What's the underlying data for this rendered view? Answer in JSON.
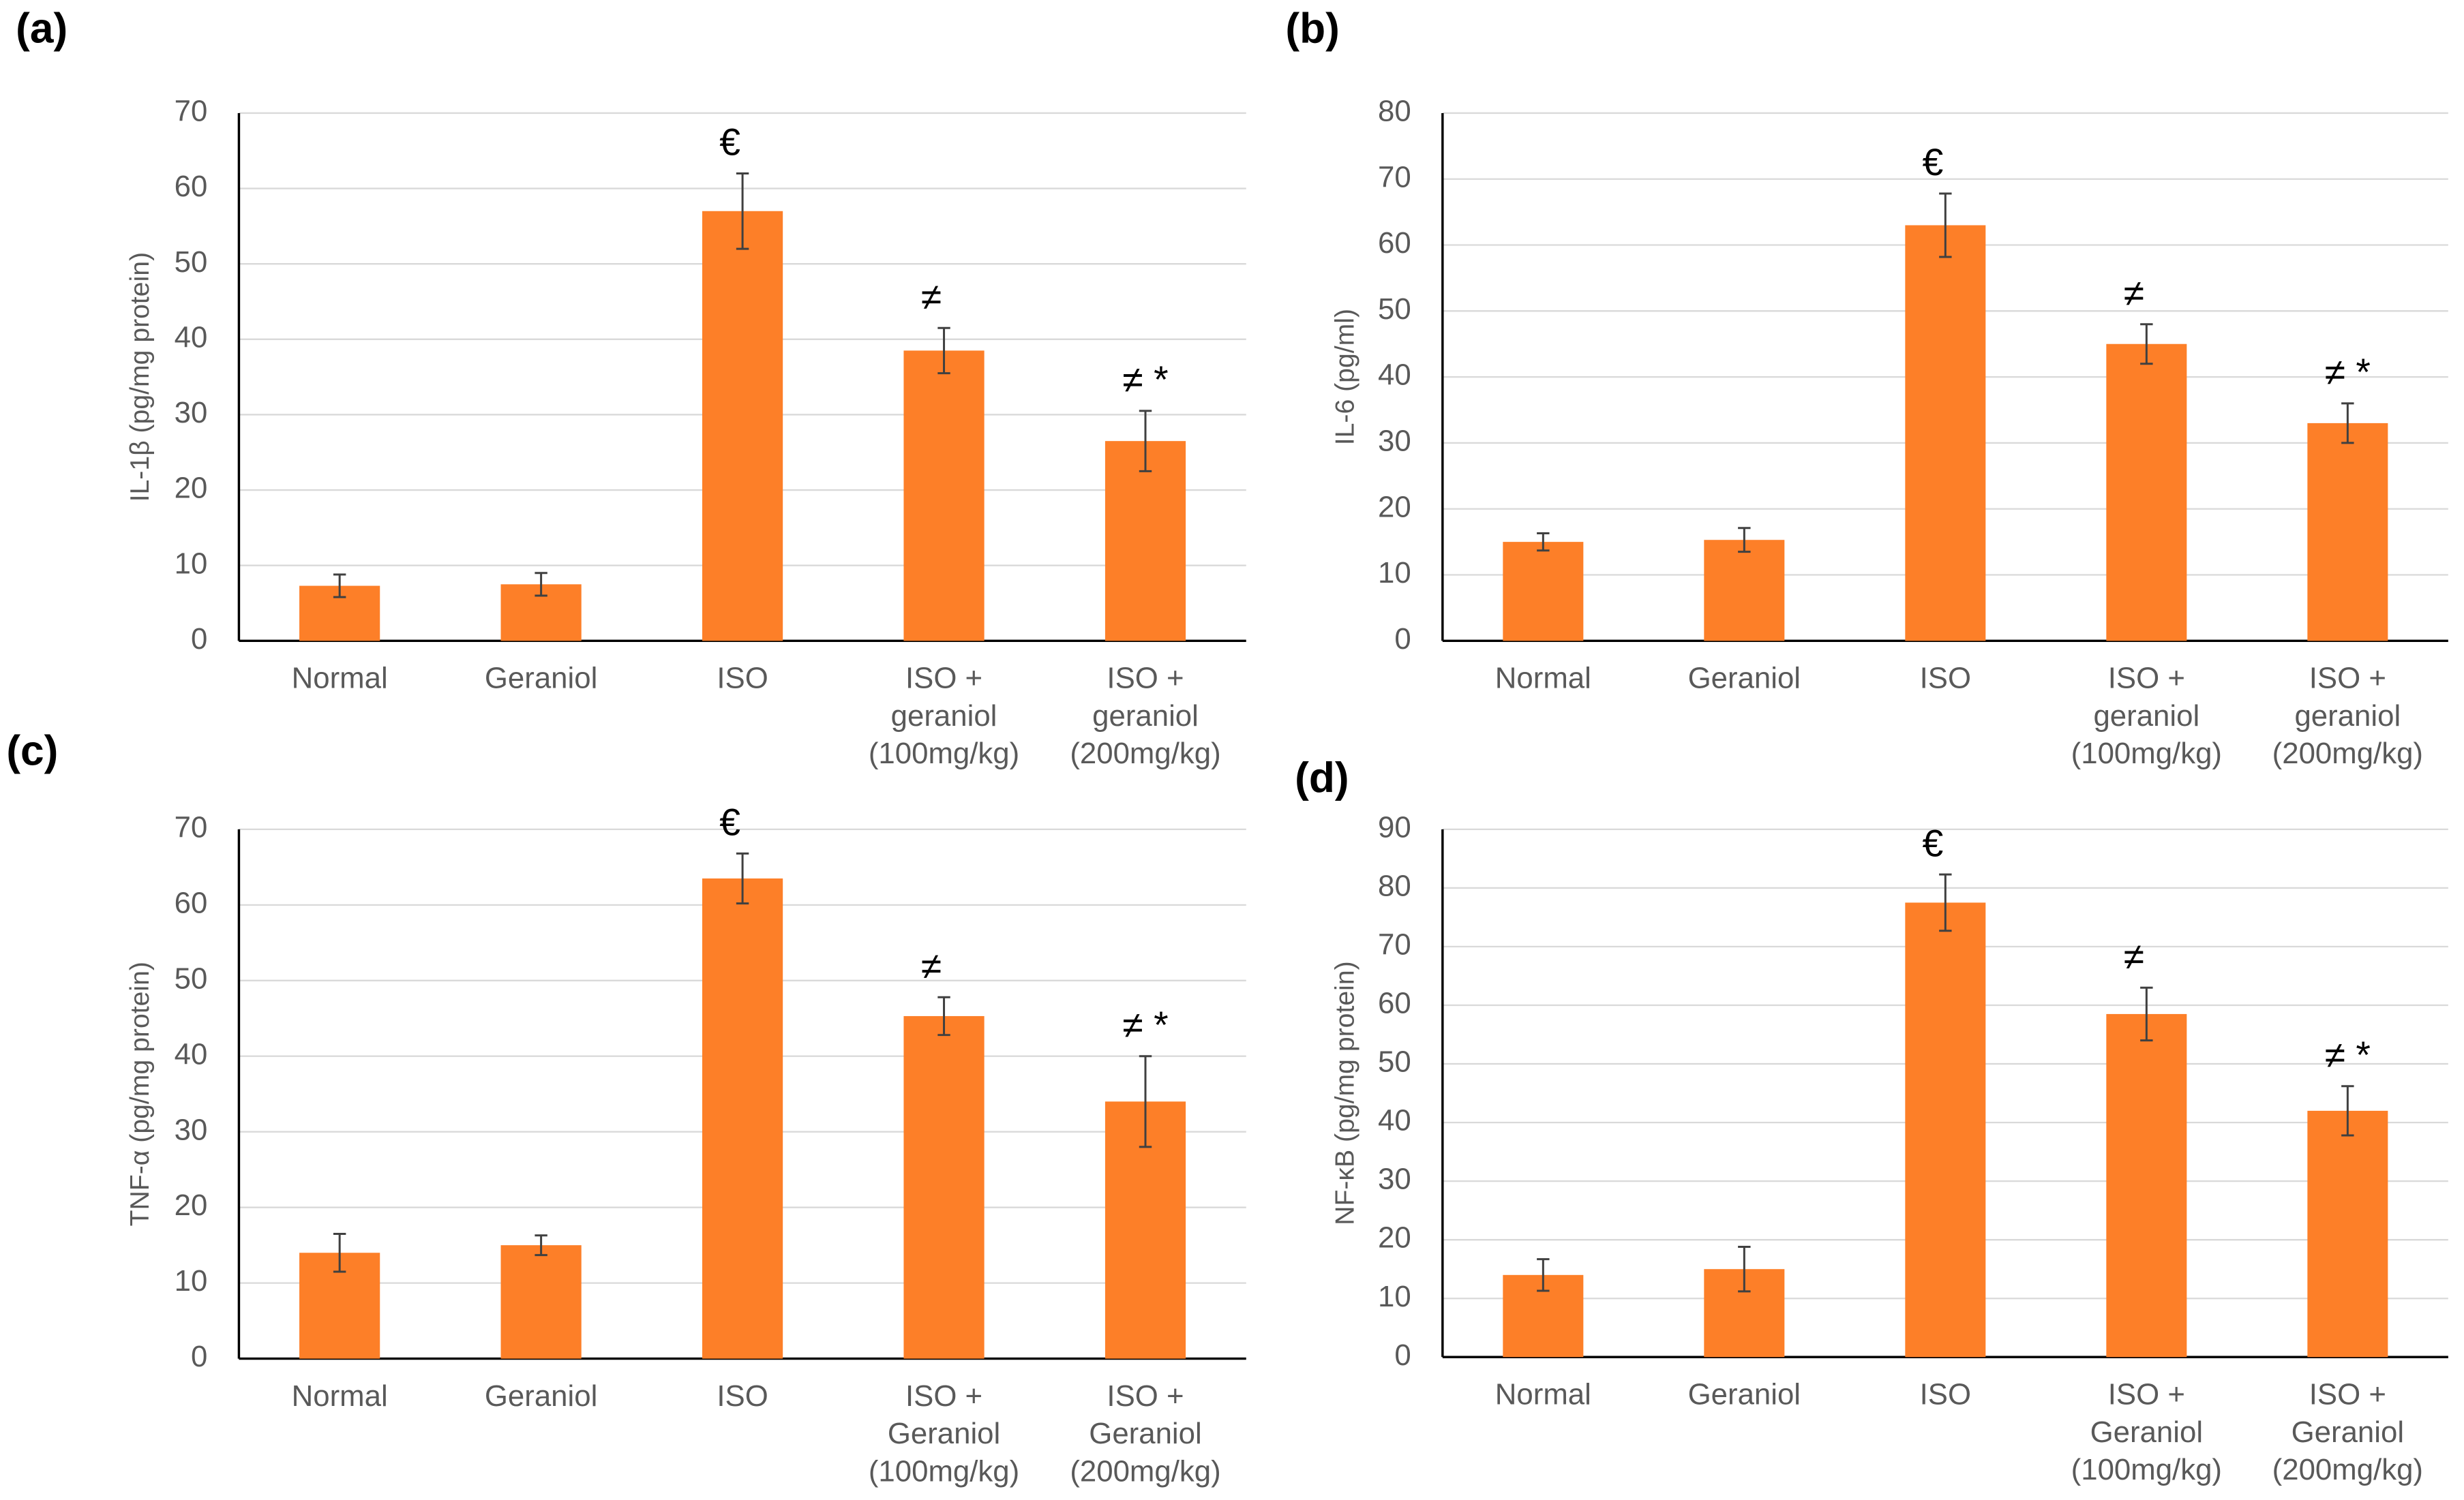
{
  "chart_data": [
    {
      "type": "bar",
      "panel_label": "(a)",
      "ylabel": "IL-1β (pg/mg protein)",
      "categories": [
        [
          "Normal"
        ],
        [
          "Geraniol"
        ],
        [
          "ISO"
        ],
        [
          "ISO +",
          "geraniol",
          "(100mg/kg)"
        ],
        [
          "ISO +",
          "geraniol",
          "(200mg/kg)"
        ]
      ],
      "values": [
        7.3,
        7.5,
        57,
        38.5,
        26.5
      ],
      "errors": [
        1.5,
        1.5,
        5,
        3,
        4
      ],
      "annotations": [
        null,
        null,
        "€",
        "≠",
        "≠ *"
      ],
      "color": "#fd7f28",
      "ylim": [
        0,
        70
      ],
      "yticks": [
        0,
        10,
        20,
        30,
        40,
        50,
        60,
        70
      ],
      "grid": true
    },
    {
      "type": "bar",
      "panel_label": "(b)",
      "ylabel": "IL-6 (pg/ml)",
      "categories": [
        [
          "Normal"
        ],
        [
          "Geraniol"
        ],
        [
          "ISO"
        ],
        [
          "ISO +",
          "geraniol",
          "(100mg/kg)"
        ],
        [
          "ISO +",
          "geraniol",
          "(200mg/kg)"
        ]
      ],
      "values": [
        15,
        15.3,
        63,
        45,
        33
      ],
      "errors": [
        1.3,
        1.8,
        4.8,
        3,
        3
      ],
      "annotations": [
        null,
        null,
        "€",
        "≠",
        "≠ *"
      ],
      "color": "#fd7f28",
      "ylim": [
        0,
        80
      ],
      "yticks": [
        0,
        10,
        20,
        30,
        40,
        50,
        60,
        70,
        80
      ],
      "grid": true
    },
    {
      "type": "bar",
      "panel_label": "(c)",
      "ylabel": "TNF-α (pg/mg protein)",
      "categories": [
        [
          "Normal"
        ],
        [
          "Geraniol"
        ],
        [
          "ISO"
        ],
        [
          "ISO +",
          "Geraniol",
          "(100mg/kg)"
        ],
        [
          "ISO +",
          "Geraniol",
          "(200mg/kg)"
        ]
      ],
      "values": [
        14,
        15,
        63.5,
        45.3,
        34
      ],
      "errors": [
        2.5,
        1.3,
        3.3,
        2.5,
        6
      ],
      "annotations": [
        null,
        null,
        "€",
        "≠",
        "≠ *"
      ],
      "color": "#fd7f28",
      "ylim": [
        0,
        70
      ],
      "yticks": [
        0,
        10,
        20,
        30,
        40,
        50,
        60,
        70
      ],
      "grid": true
    },
    {
      "type": "bar",
      "panel_label": "(d)",
      "ylabel": "NF-κB (pg/mg protein)",
      "categories": [
        [
          "Normal"
        ],
        [
          "Geraniol"
        ],
        [
          "ISO"
        ],
        [
          "ISO +",
          "Geraniol",
          "(100mg/kg)"
        ],
        [
          "ISO +",
          "Geraniol",
          "(200mg/kg)"
        ]
      ],
      "values": [
        14,
        15,
        77.5,
        58.5,
        42
      ],
      "errors": [
        2.7,
        3.8,
        4.8,
        4.5,
        4.2
      ],
      "annotations": [
        null,
        null,
        "€",
        "≠",
        "≠ *"
      ],
      "color": "#fd7f28",
      "ylim": [
        0,
        90
      ],
      "yticks": [
        0,
        10,
        20,
        30,
        40,
        50,
        60,
        70,
        80,
        90
      ],
      "grid": true
    }
  ]
}
